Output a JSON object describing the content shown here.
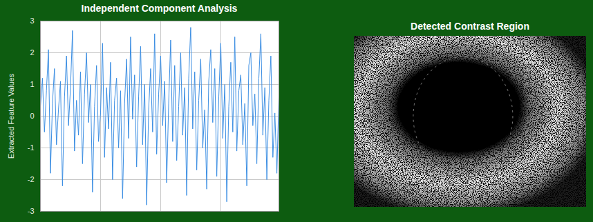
{
  "chart_data": [
    {
      "type": "line",
      "title": "Independent Component Analysis",
      "y_label": "Extracted Feature Values",
      "x": [
        0,
        1,
        2,
        3,
        4,
        5,
        6,
        7,
        8,
        9,
        10,
        11,
        12,
        13,
        14,
        15,
        16,
        17,
        18,
        19,
        20,
        21,
        22,
        23,
        24,
        25,
        26,
        27,
        28,
        29,
        30,
        31,
        32,
        33,
        34,
        35,
        36,
        37,
        38,
        39,
        40,
        41,
        42,
        43,
        44,
        45,
        46,
        47,
        48,
        49,
        50,
        51,
        52,
        53,
        54,
        55,
        56,
        57,
        58,
        59,
        60,
        61,
        62,
        63,
        64,
        65,
        66,
        67,
        68,
        69,
        70,
        71,
        72,
        73,
        74,
        75,
        76,
        77,
        78,
        79,
        80,
        81,
        82,
        83,
        84,
        85,
        86,
        87,
        88,
        89,
        90,
        91,
        92,
        93,
        94,
        95,
        96,
        97,
        98,
        99,
        100,
        101,
        102,
        103,
        104,
        105,
        106,
        107,
        108,
        109,
        110,
        111,
        112,
        113,
        114,
        115,
        116,
        117,
        118,
        119
      ],
      "values": [
        0.3,
        1.2,
        -0.5,
        0.8,
        2.1,
        -1.8,
        0.4,
        1.5,
        -0.9,
        0.2,
        1.1,
        -2.2,
        0.6,
        1.9,
        -0.3,
        0.9,
        2.7,
        -1.1,
        0.5,
        -0.6,
        1.4,
        -1.5,
        0.7,
        2.0,
        -0.2,
        1.0,
        -2.4,
        0.3,
        1.6,
        -0.8,
        0.1,
        2.3,
        -1.3,
        0.9,
        -0.4,
        1.7,
        -2.0,
        0.5,
        1.2,
        -1.0,
        0.8,
        -2.6,
        0.4,
        1.8,
        -0.7,
        2.5,
        -0.1,
        1.3,
        -1.6,
        0.6,
        2.2,
        -0.9,
        1.0,
        -2.8,
        0.2,
        1.5,
        -0.5,
        2.6,
        -1.2,
        0.7,
        1.9,
        -0.3,
        1.1,
        -2.1,
        0.4,
        2.4,
        -0.8,
        1.6,
        -1.4,
        0.3,
        2.0,
        -0.6,
        0.9,
        -2.5,
        1.2,
        2.8,
        -0.4,
        1.4,
        -1.7,
        0.5,
        1.8,
        -1.0,
        0.2,
        -2.3,
        1.1,
        2.1,
        -0.2,
        1.5,
        -1.9,
        0.6,
        2.3,
        -0.7,
        1.0,
        -2.7,
        0.3,
        1.7,
        -0.5,
        2.5,
        -1.1,
        0.8,
        1.3,
        -0.9,
        0.4,
        -2.2,
        1.6,
        2.0,
        -0.3,
        0.7,
        -1.5,
        1.2,
        2.6,
        -0.6,
        0.9,
        -2.0,
        0.5,
        1.9,
        -1.3,
        0.1,
        -1.8,
        0.6
      ],
      "color": "#3d8fe3",
      "xlim": [
        0,
        119
      ],
      "xticks": [
        30,
        60,
        90
      ],
      "ylim": [
        -3,
        3
      ],
      "yticks": [
        -3,
        -2,
        -1,
        0,
        1,
        2,
        3
      ],
      "grid": true,
      "tick_labels": "y"
    },
    {
      "type": "image",
      "title": "Detected Contrast Region"
    }
  ]
}
